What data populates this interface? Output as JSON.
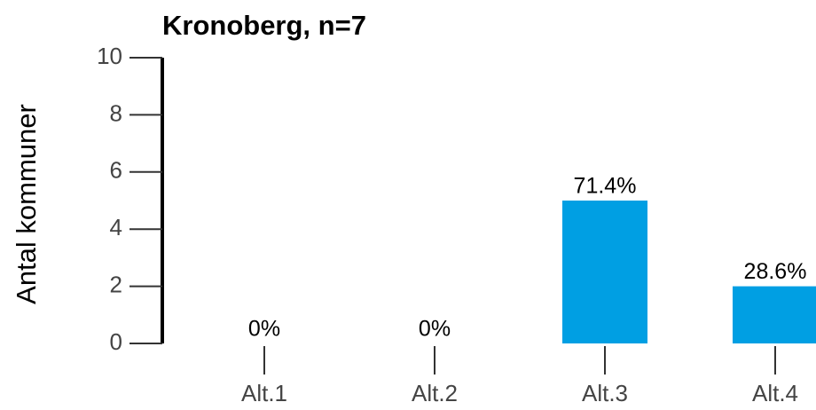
{
  "chart_data": {
    "type": "bar",
    "title": "Kronoberg, n=7",
    "y_label": "Antal kommuner",
    "categories": [
      "Alt.1",
      "Alt.2",
      "Alt.3",
      "Alt.4"
    ],
    "values": [
      0,
      0,
      5,
      2
    ],
    "value_labels": [
      "0%",
      "0%",
      "71.4%",
      "28.6%"
    ],
    "color": "#009fe3",
    "ylim": [
      0,
      10
    ],
    "yticks": [
      0,
      2,
      4,
      6,
      8,
      10
    ],
    "grid": false
  }
}
